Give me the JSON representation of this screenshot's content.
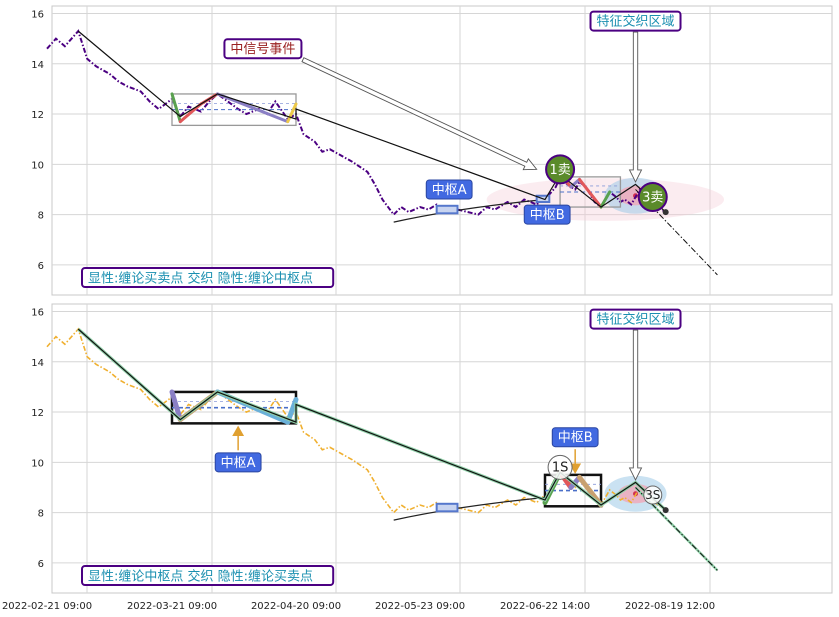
{
  "chart_data": [
    {
      "type": "line",
      "panel": "top",
      "ylim": [
        4.8,
        16.3
      ],
      "yticks": [
        "6",
        "8",
        "10",
        "12",
        "14",
        "16"
      ],
      "grid": true,
      "price_color": "#4b0082",
      "price_style": "dash-dot",
      "price": [
        {
          "x": "2022-02-21",
          "y": 14.6
        },
        {
          "x": "2022-02-23",
          "y": 15.0
        },
        {
          "x": "2022-02-25",
          "y": 14.7
        },
        {
          "x": "2022-02-28",
          "y": 15.3
        },
        {
          "x": "2022-03-02",
          "y": 14.2
        },
        {
          "x": "2022-03-04",
          "y": 13.9
        },
        {
          "x": "2022-03-07",
          "y": 13.6
        },
        {
          "x": "2022-03-09",
          "y": 13.3
        },
        {
          "x": "2022-03-11",
          "y": 13.1
        },
        {
          "x": "2022-03-14",
          "y": 12.9
        },
        {
          "x": "2022-03-16",
          "y": 12.5
        },
        {
          "x": "2022-03-18",
          "y": 12.2
        },
        {
          "x": "2022-03-21",
          "y": 12.6
        },
        {
          "x": "2022-03-23",
          "y": 11.9
        },
        {
          "x": "2022-03-25",
          "y": 12.3
        },
        {
          "x": "2022-03-28",
          "y": 12.1
        },
        {
          "x": "2022-03-30",
          "y": 12.5
        },
        {
          "x": "2022-04-01",
          "y": 12.8
        },
        {
          "x": "2022-04-06",
          "y": 12.2
        },
        {
          "x": "2022-04-08",
          "y": 12.0
        },
        {
          "x": "2022-04-11",
          "y": 12.2
        },
        {
          "x": "2022-04-13",
          "y": 12.0
        },
        {
          "x": "2022-04-15",
          "y": 12.5
        },
        {
          "x": "2022-04-18",
          "y": 11.8
        },
        {
          "x": "2022-04-20",
          "y": 12.0
        },
        {
          "x": "2022-04-22",
          "y": 11.2
        },
        {
          "x": "2022-04-25",
          "y": 10.9
        },
        {
          "x": "2022-04-27",
          "y": 10.5
        },
        {
          "x": "2022-04-29",
          "y": 10.6
        },
        {
          "x": "2022-05-05",
          "y": 10.1
        },
        {
          "x": "2022-05-09",
          "y": 9.7
        },
        {
          "x": "2022-05-11",
          "y": 9.2
        },
        {
          "x": "2022-05-13",
          "y": 8.6
        },
        {
          "x": "2022-05-16",
          "y": 8.0
        },
        {
          "x": "2022-05-18",
          "y": 8.3
        },
        {
          "x": "2022-05-20",
          "y": 8.1
        },
        {
          "x": "2022-05-23",
          "y": 8.3
        },
        {
          "x": "2022-05-25",
          "y": 8.2
        },
        {
          "x": "2022-05-27",
          "y": 8.4
        },
        {
          "x": "2022-05-30",
          "y": 8.1
        },
        {
          "x": "2022-06-01",
          "y": 8.2
        },
        {
          "x": "2022-06-06",
          "y": 8.0
        },
        {
          "x": "2022-06-08",
          "y": 8.3
        },
        {
          "x": "2022-06-10",
          "y": 8.2
        },
        {
          "x": "2022-06-13",
          "y": 8.5
        },
        {
          "x": "2022-06-15",
          "y": 8.3
        },
        {
          "x": "2022-06-17",
          "y": 8.6
        },
        {
          "x": "2022-06-20",
          "y": 8.4
        },
        {
          "x": "2022-06-22",
          "y": 8.7
        },
        {
          "x": "2022-06-24",
          "y": 8.8
        },
        {
          "x": "2022-06-27",
          "y": 9.1
        },
        {
          "x": "2022-06-29",
          "y": 9.5
        },
        {
          "x": "2022-07-01",
          "y": 9.3
        },
        {
          "x": "2022-07-04",
          "y": 9.1
        },
        {
          "x": "2022-07-06",
          "y": 9.0
        },
        {
          "x": "2022-07-08",
          "y": 9.3
        },
        {
          "x": "2022-07-11",
          "y": 9.1
        },
        {
          "x": "2022-07-13",
          "y": 8.8
        },
        {
          "x": "2022-07-15",
          "y": 8.5
        },
        {
          "x": "2022-07-18",
          "y": 8.3
        },
        {
          "x": "2022-07-20",
          "y": 8.6
        },
        {
          "x": "2022-07-22",
          "y": 8.9
        },
        {
          "x": "2022-07-25",
          "y": 8.7
        },
        {
          "x": "2022-07-27",
          "y": 8.5
        },
        {
          "x": "2022-07-29",
          "y": 8.6
        },
        {
          "x": "2022-08-01",
          "y": 8.4
        },
        {
          "x": "2022-08-03",
          "y": 8.7
        },
        {
          "x": "2022-08-05",
          "y": 9.0
        },
        {
          "x": "2022-08-08",
          "y": 8.8
        },
        {
          "x": "2022-08-10",
          "y": 8.6
        },
        {
          "x": "2022-08-12",
          "y": 8.4
        },
        {
          "x": "2022-08-15",
          "y": 8.2
        },
        {
          "x": "2022-08-17",
          "y": 8.1
        }
      ],
      "trend_line": [
        {
          "x": "2022-02-28",
          "y": 15.3
        },
        {
          "x": "2022-03-23",
          "y": 11.9
        },
        {
          "x": "2022-04-01",
          "y": 12.8
        },
        {
          "x": "2022-04-20",
          "y": 11.8
        },
        {
          "x": "2022-04-20",
          "y": 12.2
        },
        {
          "x": "2022-06-22",
          "y": 8.6
        },
        {
          "x": "2022-06-29",
          "y": 9.6
        },
        {
          "x": "2022-07-18",
          "y": 8.3
        },
        {
          "x": "2022-08-03",
          "y": 9.2
        },
        {
          "x": "2022-08-17",
          "y": 8.1
        }
      ],
      "lower_curve": [
        {
          "x": "2022-05-16",
          "y": 7.7
        },
        {
          "x": "2022-06-01",
          "y": 8.1
        },
        {
          "x": "2022-06-22",
          "y": 8.6
        }
      ],
      "projection": [
        {
          "x": "2022-08-03",
          "y": 9.0
        },
        {
          "x": "2022-09-10",
          "y": 5.6
        }
      ],
      "zigzag": [
        {
          "x": "2022-03-21",
          "y": 12.8,
          "color": "#59a14f"
        },
        {
          "x": "2022-03-23",
          "y": 11.7,
          "color": "#e15759"
        },
        {
          "x": "2022-03-28",
          "y": 12.4,
          "color": "#e15759"
        },
        {
          "x": "2022-04-01",
          "y": 12.8,
          "color": "#8a7fc4"
        },
        {
          "x": "2022-04-18",
          "y": 11.7,
          "color": "#edc949"
        },
        {
          "x": "2022-04-20",
          "y": 12.4,
          "color": "#8a7fc4"
        }
      ],
      "zigzag2": [
        {
          "x": "2022-06-29",
          "y": 9.6,
          "color": "#e15759"
        },
        {
          "x": "2022-07-04",
          "y": 9.1,
          "color": "#8a7fc4"
        },
        {
          "x": "2022-07-08",
          "y": 9.4,
          "color": "#e15759"
        },
        {
          "x": "2022-07-18",
          "y": 8.3,
          "color": "#59a14f"
        },
        {
          "x": "2022-07-22",
          "y": 8.9,
          "color": "#8a7fc4"
        }
      ],
      "pivots": [
        {
          "x0": "2022-03-21",
          "x1": "2022-04-20",
          "y0": 11.55,
          "y1": 12.8,
          "style": "thin"
        },
        {
          "x0": "2022-06-29",
          "x1": "2022-07-27",
          "y0": 8.3,
          "y1": 9.5,
          "style": "thin"
        },
        {
          "x0": "2022-05-27",
          "x1": "2022-06-01",
          "y0": 8.05,
          "y1": 8.35,
          "style": "small"
        },
        {
          "x0": "2022-06-20",
          "x1": "2022-06-24",
          "y0": 8.5,
          "y1": 8.75,
          "style": "small"
        }
      ],
      "zone_ellipse": {
        "x": "2022-07-20",
        "y": 8.6,
        "rx_days": 42,
        "ry": 0.85
      },
      "feature_ellipse": {
        "x": "2022-08-03",
        "y": 8.75,
        "rx_days": 9,
        "ry": 0.55
      },
      "legend_text": "显性:缠论买卖点 交织 隐性:缠论中枢点",
      "annotations": [
        {
          "text": "中信号事件",
          "style": "outlined",
          "x": "2022-04-12",
          "y": 14.6,
          "arrow_to": {
            "x": "2022-06-20",
            "y": 9.8
          }
        },
        {
          "text": "特征交织区域",
          "style": "outlined",
          "x": "2022-08-03",
          "y": 15.7,
          "arrow_to": {
            "x": "2022-08-03",
            "y": 9.3
          }
        },
        {
          "text": "中枢A",
          "style": "filled",
          "x": "2022-05-30",
          "y": 9.0
        },
        {
          "text": "中枢B",
          "style": "filled",
          "x": "2022-06-23",
          "y": 8.0
        },
        {
          "text": "1卖",
          "style": "circle",
          "x": "2022-06-29",
          "y": 9.8
        },
        {
          "text": "3卖",
          "style": "circle",
          "x": "2022-08-11",
          "y": 8.7
        }
      ]
    },
    {
      "type": "line",
      "panel": "bottom",
      "ylim": [
        4.8,
        16.3
      ],
      "yticks": [
        "6",
        "8",
        "10",
        "12",
        "14",
        "16"
      ],
      "grid": true,
      "price_color": "#f0b030",
      "price_style": "dash-dot",
      "price": [
        {
          "x": "2022-02-21",
          "y": 14.6
        },
        {
          "x": "2022-02-23",
          "y": 15.0
        },
        {
          "x": "2022-02-25",
          "y": 14.7
        },
        {
          "x": "2022-02-28",
          "y": 15.3
        },
        {
          "x": "2022-03-02",
          "y": 14.2
        },
        {
          "x": "2022-03-04",
          "y": 13.9
        },
        {
          "x": "2022-03-07",
          "y": 13.6
        },
        {
          "x": "2022-03-09",
          "y": 13.3
        },
        {
          "x": "2022-03-11",
          "y": 13.1
        },
        {
          "x": "2022-03-14",
          "y": 12.9
        },
        {
          "x": "2022-03-16",
          "y": 12.5
        },
        {
          "x": "2022-03-18",
          "y": 12.2
        },
        {
          "x": "2022-03-21",
          "y": 12.6
        },
        {
          "x": "2022-03-23",
          "y": 11.9
        },
        {
          "x": "2022-03-25",
          "y": 12.3
        },
        {
          "x": "2022-03-28",
          "y": 12.1
        },
        {
          "x": "2022-03-30",
          "y": 12.5
        },
        {
          "x": "2022-04-01",
          "y": 12.8
        },
        {
          "x": "2022-04-06",
          "y": 12.2
        },
        {
          "x": "2022-04-08",
          "y": 12.0
        },
        {
          "x": "2022-04-11",
          "y": 12.2
        },
        {
          "x": "2022-04-13",
          "y": 12.0
        },
        {
          "x": "2022-04-15",
          "y": 12.5
        },
        {
          "x": "2022-04-18",
          "y": 11.8
        },
        {
          "x": "2022-04-20",
          "y": 12.0
        },
        {
          "x": "2022-04-22",
          "y": 11.2
        },
        {
          "x": "2022-04-25",
          "y": 10.9
        },
        {
          "x": "2022-04-27",
          "y": 10.5
        },
        {
          "x": "2022-04-29",
          "y": 10.6
        },
        {
          "x": "2022-05-05",
          "y": 10.1
        },
        {
          "x": "2022-05-09",
          "y": 9.7
        },
        {
          "x": "2022-05-11",
          "y": 9.2
        },
        {
          "x": "2022-05-13",
          "y": 8.6
        },
        {
          "x": "2022-05-16",
          "y": 8.0
        },
        {
          "x": "2022-05-18",
          "y": 8.3
        },
        {
          "x": "2022-05-20",
          "y": 8.1
        },
        {
          "x": "2022-05-23",
          "y": 8.3
        },
        {
          "x": "2022-05-25",
          "y": 8.2
        },
        {
          "x": "2022-05-27",
          "y": 8.4
        },
        {
          "x": "2022-05-30",
          "y": 8.1
        },
        {
          "x": "2022-06-01",
          "y": 8.2
        },
        {
          "x": "2022-06-06",
          "y": 8.0
        },
        {
          "x": "2022-06-08",
          "y": 8.3
        },
        {
          "x": "2022-06-10",
          "y": 8.2
        },
        {
          "x": "2022-06-13",
          "y": 8.5
        },
        {
          "x": "2022-06-15",
          "y": 8.3
        },
        {
          "x": "2022-06-17",
          "y": 8.6
        },
        {
          "x": "2022-06-20",
          "y": 8.4
        },
        {
          "x": "2022-06-22",
          "y": 8.7
        },
        {
          "x": "2022-06-24",
          "y": 8.8
        },
        {
          "x": "2022-06-27",
          "y": 9.1
        },
        {
          "x": "2022-06-29",
          "y": 9.5
        },
        {
          "x": "2022-07-01",
          "y": 9.3
        },
        {
          "x": "2022-07-04",
          "y": 9.1
        },
        {
          "x": "2022-07-06",
          "y": 9.0
        },
        {
          "x": "2022-07-08",
          "y": 9.3
        },
        {
          "x": "2022-07-11",
          "y": 9.1
        },
        {
          "x": "2022-07-13",
          "y": 8.8
        },
        {
          "x": "2022-07-15",
          "y": 8.5
        },
        {
          "x": "2022-07-18",
          "y": 8.3
        },
        {
          "x": "2022-07-20",
          "y": 8.6
        },
        {
          "x": "2022-07-22",
          "y": 8.9
        },
        {
          "x": "2022-07-25",
          "y": 8.7
        },
        {
          "x": "2022-07-27",
          "y": 8.5
        },
        {
          "x": "2022-07-29",
          "y": 8.6
        },
        {
          "x": "2022-08-01",
          "y": 8.4
        },
        {
          "x": "2022-08-03",
          "y": 8.7
        },
        {
          "x": "2022-08-05",
          "y": 9.0
        },
        {
          "x": "2022-08-08",
          "y": 8.8
        },
        {
          "x": "2022-08-10",
          "y": 8.6
        },
        {
          "x": "2022-08-12",
          "y": 8.4
        },
        {
          "x": "2022-08-15",
          "y": 8.2
        },
        {
          "x": "2022-08-17",
          "y": 8.1
        }
      ],
      "trend_line": [
        {
          "x": "2022-02-28",
          "y": 15.3
        },
        {
          "x": "2022-03-23",
          "y": 11.7
        },
        {
          "x": "2022-04-01",
          "y": 12.8
        },
        {
          "x": "2022-04-20",
          "y": 11.6
        },
        {
          "x": "2022-04-20",
          "y": 12.3
        },
        {
          "x": "2022-06-22",
          "y": 8.5
        },
        {
          "x": "2022-06-29",
          "y": 9.6
        },
        {
          "x": "2022-07-18",
          "y": 8.3
        },
        {
          "x": "2022-08-03",
          "y": 9.2
        },
        {
          "x": "2022-08-17",
          "y": 8.1
        }
      ],
      "lower_curve": [
        {
          "x": "2022-05-16",
          "y": 7.7
        },
        {
          "x": "2022-06-01",
          "y": 8.1
        },
        {
          "x": "2022-06-22",
          "y": 8.6
        }
      ],
      "projection": [
        {
          "x": "2022-08-03",
          "y": 9.0
        },
        {
          "x": "2022-09-10",
          "y": 5.7
        }
      ],
      "zigzag": [
        {
          "x": "2022-03-21",
          "y": 12.8,
          "color": "#8a7fc4"
        },
        {
          "x": "2022-03-23",
          "y": 11.7,
          "color": "#c8a070"
        },
        {
          "x": "2022-04-01",
          "y": 12.8,
          "color": "#6ab0d8"
        },
        {
          "x": "2022-04-18",
          "y": 11.6,
          "color": "#6ab0d8"
        },
        {
          "x": "2022-04-20",
          "y": 12.5,
          "color": "#8a7fc4"
        }
      ],
      "zigzag2": [
        {
          "x": "2022-06-22",
          "y": 8.4,
          "color": "#59a14f"
        },
        {
          "x": "2022-06-29",
          "y": 9.6,
          "color": "#e15759"
        },
        {
          "x": "2022-07-04",
          "y": 9.0,
          "color": "#8a7fc4"
        },
        {
          "x": "2022-07-08",
          "y": 9.4,
          "color": "#c8a070"
        },
        {
          "x": "2022-07-18",
          "y": 8.3,
          "color": "#6ab0d8"
        }
      ],
      "pivots": [
        {
          "x0": "2022-03-21",
          "x1": "2022-04-20",
          "y0": 11.55,
          "y1": 12.8,
          "style": "thick"
        },
        {
          "x0": "2022-06-22",
          "x1": "2022-07-18",
          "y0": 8.25,
          "y1": 9.5,
          "style": "thick"
        },
        {
          "x0": "2022-05-27",
          "x1": "2022-06-01",
          "y0": 8.05,
          "y1": 8.35,
          "style": "small"
        }
      ],
      "zone_ellipse": null,
      "feature_ellipse": {
        "x": "2022-08-03",
        "y": 8.75,
        "rx_days": 9,
        "ry": 0.55
      },
      "legend_text": "显性:缠论中枢点 交织 隐性:缠论买卖点",
      "annotations": [
        {
          "text": "特征交织区域",
          "style": "outlined",
          "x": "2022-08-03",
          "y": 15.7,
          "arrow_to": {
            "x": "2022-08-03",
            "y": 9.3
          }
        },
        {
          "text": "中枢A",
          "style": "filled",
          "x": "2022-04-06",
          "y": 10.0,
          "arrow_to": {
            "x": "2022-04-06",
            "y": 11.4
          }
        },
        {
          "text": "中枢B",
          "style": "filled",
          "x": "2022-07-06",
          "y": 11.0,
          "arrow_to": {
            "x": "2022-07-06",
            "y": 9.6
          }
        },
        {
          "text": "1S",
          "style": "circle-small",
          "x": "2022-06-29",
          "y": 9.8
        },
        {
          "text": "3S",
          "style": "circle-small",
          "x": "2022-08-11",
          "y": 8.7
        }
      ]
    }
  ],
  "x_axis": {
    "ticks": [
      "2022-02-21 09:00",
      "2022-03-21 09:00",
      "2022-04-20 09:00",
      "2022-05-23 09:00",
      "2022-06-22 14:00",
      "2022-08-19 12:00"
    ],
    "tick_dates": [
      "2022-02-21",
      "2022-03-21",
      "2022-04-20",
      "2022-05-23",
      "2022-06-22",
      "2022-08-19"
    ]
  }
}
